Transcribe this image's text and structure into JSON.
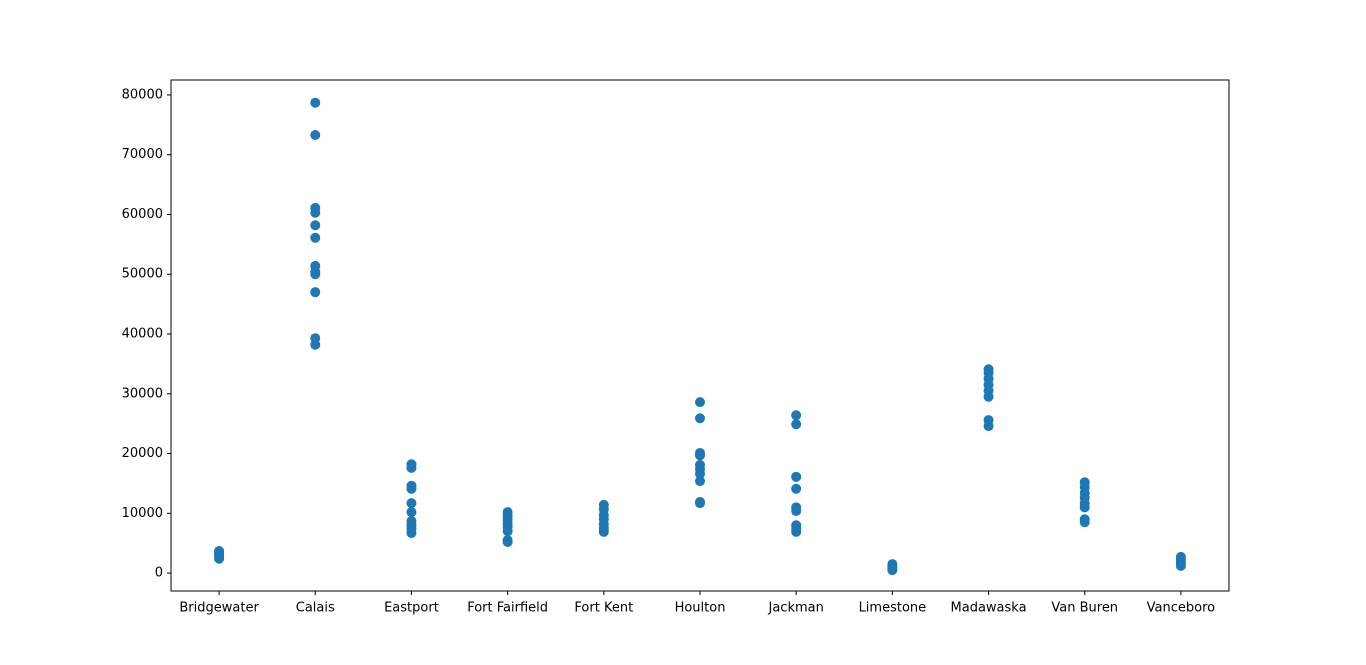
{
  "chart_data": {
    "type": "scatter",
    "categories": [
      "Bridgewater",
      "Calais",
      "Eastport",
      "Fort Fairfield",
      "Fort Kent",
      "Houlton",
      "Jackman",
      "Limestone",
      "Madawaska",
      "Van Buren",
      "Vanceboro"
    ],
    "xlim": [
      -0.5,
      10.5
    ],
    "ylim": [
      -3000,
      82500
    ],
    "yticks": [
      0,
      10000,
      20000,
      30000,
      40000,
      50000,
      60000,
      70000,
      80000
    ],
    "grid": false,
    "series": [
      {
        "color": "#1f77b4",
        "x": [
          "Bridgewater",
          "Bridgewater",
          "Bridgewater",
          "Bridgewater",
          "Bridgewater",
          "Calais",
          "Calais",
          "Calais",
          "Calais",
          "Calais",
          "Calais",
          "Calais",
          "Calais",
          "Calais",
          "Calais",
          "Calais",
          "Calais",
          "Eastport",
          "Eastport",
          "Eastport",
          "Eastport",
          "Eastport",
          "Eastport",
          "Eastport",
          "Eastport",
          "Eastport",
          "Eastport",
          "Fort Fairfield",
          "Fort Fairfield",
          "Fort Fairfield",
          "Fort Fairfield",
          "Fort Fairfield",
          "Fort Fairfield",
          "Fort Fairfield",
          "Fort Fairfield",
          "Fort Kent",
          "Fort Kent",
          "Fort Kent",
          "Fort Kent",
          "Fort Kent",
          "Fort Kent",
          "Fort Kent",
          "Houlton",
          "Houlton",
          "Houlton",
          "Houlton",
          "Houlton",
          "Houlton",
          "Houlton",
          "Houlton",
          "Houlton",
          "Houlton",
          "Jackman",
          "Jackman",
          "Jackman",
          "Jackman",
          "Jackman",
          "Jackman",
          "Jackman",
          "Jackman",
          "Jackman",
          "Limestone",
          "Limestone",
          "Limestone",
          "Limestone",
          "Madawaska",
          "Madawaska",
          "Madawaska",
          "Madawaska",
          "Madawaska",
          "Madawaska",
          "Madawaska",
          "Madawaska",
          "Van Buren",
          "Van Buren",
          "Van Buren",
          "Van Buren",
          "Van Buren",
          "Van Buren",
          "Van Buren",
          "Van Buren",
          "Vanceboro",
          "Vanceboro",
          "Vanceboro",
          "Vanceboro"
        ],
        "values": [
          2400,
          2800,
          3100,
          3400,
          3700,
          78700,
          73300,
          61100,
          60300,
          58200,
          56100,
          51400,
          50400,
          50000,
          47000,
          39300,
          38200,
          18200,
          17600,
          14600,
          14100,
          11700,
          10200,
          8700,
          8000,
          7400,
          6700,
          10200,
          9500,
          8900,
          8200,
          7700,
          7000,
          5500,
          5200,
          11400,
          10700,
          9700,
          9000,
          8200,
          7500,
          6900,
          28600,
          25900,
          20100,
          19700,
          18100,
          17400,
          16600,
          15400,
          11900,
          11700,
          26400,
          24900,
          16100,
          14100,
          11000,
          10400,
          8000,
          7400,
          6900,
          1500,
          1200,
          800,
          500,
          34100,
          33500,
          32500,
          31500,
          30500,
          29500,
          25600,
          24600,
          15200,
          14400,
          13400,
          12600,
          11700,
          11000,
          9000,
          8500,
          2700,
          2200,
          1700,
          1200
        ]
      }
    ]
  }
}
